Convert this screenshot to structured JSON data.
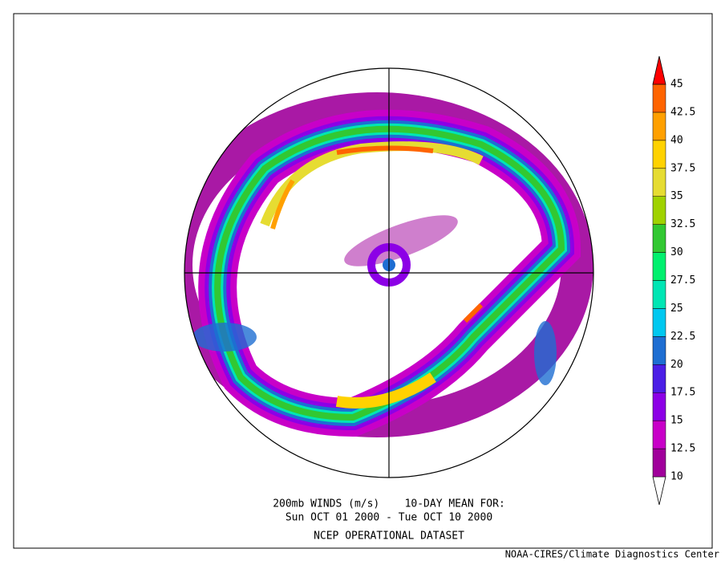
{
  "figure": {
    "title_line_1": "200mb WINDS (m/s)    10-DAY MEAN FOR:",
    "title_line_2": "Sun OCT 01 2000 - Tue OCT 10 2000",
    "dataset": "NCEP OPERATIONAL DATASET",
    "credit": "NOAA-CIRES/Climate Diagnostics Center",
    "colorbar": {
      "labels": [
        "10",
        "12.5",
        "15",
        "17.5",
        "20",
        "22.5",
        "25",
        "27.5",
        "30",
        "32.5",
        "35",
        "37.5",
        "40",
        "42.5",
        "45"
      ],
      "colors": [
        "#ffffff",
        "#a0009b",
        "#c800c8",
        "#8c00e6",
        "#4b1ee6",
        "#1e6ed2",
        "#00c8f0",
        "#00e6b4",
        "#00f06e",
        "#32c832",
        "#a0d200",
        "#e6dc32",
        "#ffd200",
        "#ffa000",
        "#ff6400",
        "#ff0000"
      ]
    }
  }
}
